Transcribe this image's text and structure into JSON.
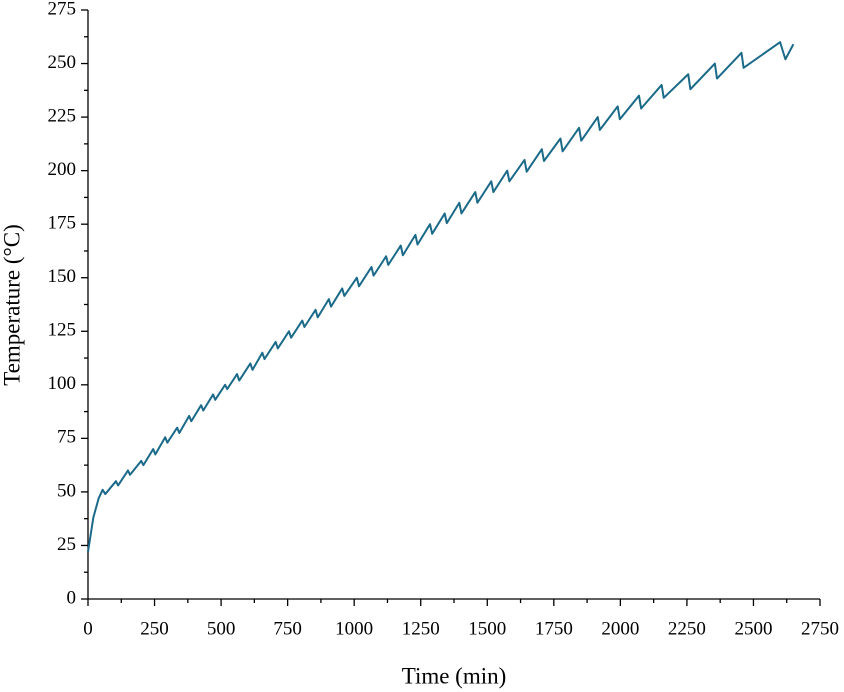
{
  "chart_data": {
    "type": "line",
    "x_label": "Time (min)",
    "y_label": "Temperature (°C)",
    "xlim": [
      0,
      2750
    ],
    "xticks": [
      0,
      250,
      500,
      750,
      1000,
      1250,
      1500,
      1750,
      2000,
      2250,
      2500,
      2750
    ],
    "ylim": [
      0,
      275
    ],
    "yticks": [
      0,
      25,
      50,
      75,
      100,
      125,
      150,
      175,
      200,
      225,
      250,
      275
    ],
    "series": [
      {
        "name": "Temperature",
        "color": "#1b6a89",
        "x": [
          0,
          20,
          40,
          55,
          65,
          105,
          113,
          150,
          158,
          200,
          208,
          245,
          253,
          290,
          298,
          335,
          343,
          380,
          388,
          425,
          433,
          470,
          478,
          515,
          523,
          560,
          568,
          610,
          618,
          655,
          663,
          705,
          713,
          755,
          763,
          805,
          813,
          855,
          863,
          905,
          913,
          955,
          963,
          1010,
          1018,
          1065,
          1073,
          1120,
          1128,
          1175,
          1183,
          1230,
          1238,
          1285,
          1293,
          1340,
          1348,
          1395,
          1403,
          1455,
          1463,
          1515,
          1523,
          1575,
          1583,
          1640,
          1648,
          1705,
          1713,
          1775,
          1783,
          1845,
          1853,
          1915,
          1923,
          1990,
          1998,
          2070,
          2078,
          2155,
          2163,
          2255,
          2263,
          2355,
          2363,
          2455,
          2463,
          2600,
          2620,
          2650
        ],
        "values": [
          22,
          38,
          47,
          51,
          49,
          55,
          53,
          60,
          58,
          64.5,
          62.5,
          70,
          67.5,
          75.5,
          73,
          80,
          77.5,
          85.5,
          83,
          90.5,
          88,
          95.5,
          93,
          100,
          98,
          105,
          102,
          110,
          107,
          115,
          112,
          120,
          117,
          125,
          122,
          130,
          127,
          135,
          131.5,
          140,
          136.5,
          145,
          141.5,
          150,
          146,
          155,
          151,
          160,
          156,
          165,
          160.5,
          170,
          165.5,
          175,
          170.5,
          180,
          175.5,
          185,
          180,
          190,
          185,
          195,
          190,
          200,
          195,
          205,
          199.5,
          210,
          204.5,
          215,
          209,
          220,
          214,
          225,
          219,
          230,
          224,
          235,
          229,
          240,
          234,
          245,
          238,
          250,
          243,
          255,
          248,
          260,
          252,
          259
        ]
      }
    ]
  }
}
